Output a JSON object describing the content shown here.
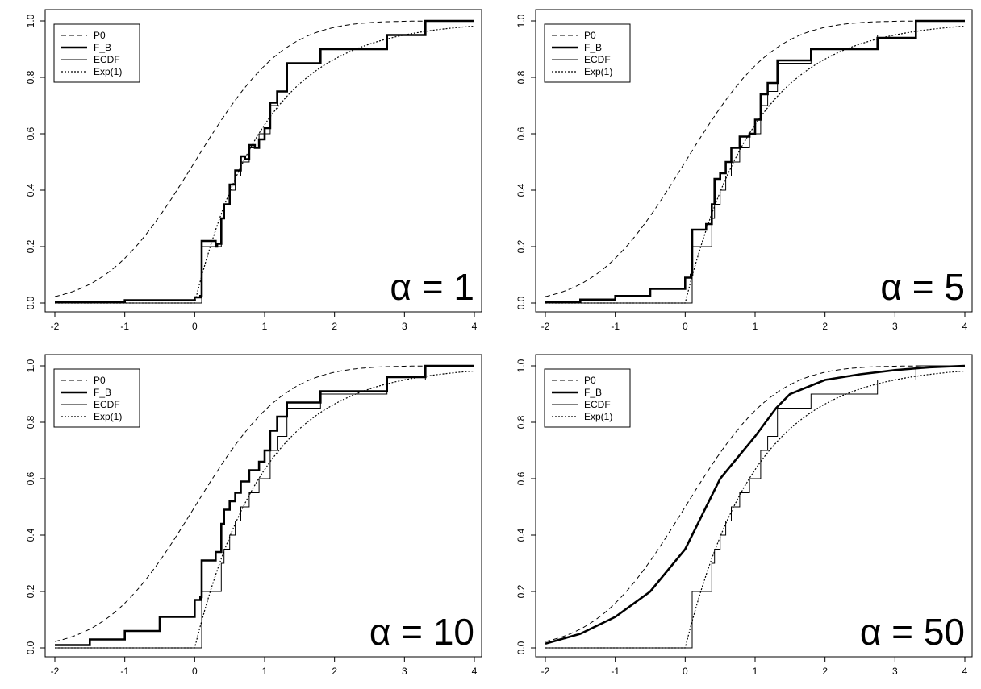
{
  "chart_data": [
    {
      "type": "line",
      "annotation": "α = 1",
      "xlim": [
        -2,
        4
      ],
      "ylim": [
        0,
        1
      ],
      "xticks": [
        "-2",
        "-1",
        "0",
        "1",
        "2",
        "3",
        "4"
      ],
      "yticks": [
        "0.0",
        "0.2",
        "0.4",
        "0.6",
        "0.8",
        "1.0"
      ],
      "legend_position": "top-left",
      "legend": [
        "P0",
        "F_B",
        "ECDF",
        "Exp(1)"
      ],
      "series": [
        {
          "name": "P0",
          "style": "dashed",
          "kind": "normal_cdf",
          "mean": 0,
          "sd": 1
        },
        {
          "name": "F_B",
          "style": "thick",
          "kind": "step",
          "points": [
            [
              -2,
              0.005
            ],
            [
              -1,
              0.01
            ],
            [
              0,
              0.02
            ],
            [
              0.08,
              0.025
            ],
            [
              0.1,
              0.22
            ],
            [
              0.3,
              0.2
            ],
            [
              0.32,
              0.21
            ],
            [
              0.38,
              0.3
            ],
            [
              0.42,
              0.35
            ],
            [
              0.5,
              0.42
            ],
            [
              0.58,
              0.47
            ],
            [
              0.66,
              0.52
            ],
            [
              0.72,
              0.51
            ],
            [
              0.78,
              0.56
            ],
            [
              0.86,
              0.55
            ],
            [
              0.92,
              0.58
            ],
            [
              1.0,
              0.62
            ],
            [
              1.08,
              0.71
            ],
            [
              1.18,
              0.75
            ],
            [
              1.32,
              0.85
            ],
            [
              1.42,
              0.85
            ],
            [
              1.8,
              0.9
            ],
            [
              2.75,
              0.95
            ],
            [
              3.3,
              1.0
            ],
            [
              4,
              1.0
            ]
          ]
        },
        {
          "name": "ECDF",
          "style": "solid",
          "kind": "step",
          "points": [
            [
              -2,
              0.0
            ],
            [
              0.08,
              0.0
            ],
            [
              0.1,
              0.2
            ],
            [
              0.32,
              0.2
            ],
            [
              0.38,
              0.3
            ],
            [
              0.42,
              0.35
            ],
            [
              0.5,
              0.4
            ],
            [
              0.58,
              0.45
            ],
            [
              0.66,
              0.5
            ],
            [
              0.78,
              0.55
            ],
            [
              0.92,
              0.6
            ],
            [
              1.0,
              0.6
            ],
            [
              1.08,
              0.7
            ],
            [
              1.18,
              0.75
            ],
            [
              1.32,
              0.85
            ],
            [
              1.8,
              0.9
            ],
            [
              2.75,
              0.95
            ],
            [
              3.3,
              1.0
            ],
            [
              4,
              1.0
            ]
          ]
        },
        {
          "name": "Exp(1)",
          "style": "dotted",
          "kind": "exp_cdf",
          "rate": 1
        }
      ]
    },
    {
      "type": "line",
      "annotation": "α = 5",
      "xlim": [
        -2,
        4
      ],
      "ylim": [
        0,
        1
      ],
      "xticks": [
        "-2",
        "-1",
        "0",
        "1",
        "2",
        "3",
        "4"
      ],
      "yticks": [
        "0.0",
        "0.2",
        "0.4",
        "0.6",
        "0.8",
        "1.0"
      ],
      "legend_position": "top-left",
      "legend": [
        "P0",
        "F_B",
        "ECDF",
        "Exp(1)"
      ],
      "series": [
        {
          "name": "P0",
          "style": "dashed",
          "kind": "normal_cdf",
          "mean": 0,
          "sd": 1
        },
        {
          "name": "F_B",
          "style": "thick",
          "kind": "step",
          "points": [
            [
              -2,
              0.005
            ],
            [
              -1.5,
              0.012
            ],
            [
              -1,
              0.025
            ],
            [
              -0.5,
              0.05
            ],
            [
              0,
              0.09
            ],
            [
              0.08,
              0.1
            ],
            [
              0.1,
              0.26
            ],
            [
              0.3,
              0.28
            ],
            [
              0.38,
              0.35
            ],
            [
              0.42,
              0.44
            ],
            [
              0.5,
              0.46
            ],
            [
              0.58,
              0.5
            ],
            [
              0.66,
              0.55
            ],
            [
              0.78,
              0.59
            ],
            [
              0.92,
              0.6
            ],
            [
              1.0,
              0.65
            ],
            [
              1.08,
              0.74
            ],
            [
              1.18,
              0.78
            ],
            [
              1.32,
              0.86
            ],
            [
              1.8,
              0.9
            ],
            [
              2.75,
              0.94
            ],
            [
              3.3,
              1.0
            ],
            [
              4,
              1.0
            ]
          ]
        },
        {
          "name": "ECDF",
          "style": "solid",
          "kind": "step",
          "points": [
            [
              -2,
              0.0
            ],
            [
              0.08,
              0.0
            ],
            [
              0.1,
              0.2
            ],
            [
              0.32,
              0.2
            ],
            [
              0.38,
              0.3
            ],
            [
              0.42,
              0.35
            ],
            [
              0.5,
              0.4
            ],
            [
              0.58,
              0.45
            ],
            [
              0.66,
              0.5
            ],
            [
              0.78,
              0.55
            ],
            [
              0.92,
              0.6
            ],
            [
              1.0,
              0.6
            ],
            [
              1.08,
              0.7
            ],
            [
              1.18,
              0.75
            ],
            [
              1.32,
              0.85
            ],
            [
              1.8,
              0.9
            ],
            [
              2.75,
              0.95
            ],
            [
              3.3,
              1.0
            ],
            [
              4,
              1.0
            ]
          ]
        },
        {
          "name": "Exp(1)",
          "style": "dotted",
          "kind": "exp_cdf",
          "rate": 1
        }
      ]
    },
    {
      "type": "line",
      "annotation": "α = 10",
      "xlim": [
        -2,
        4
      ],
      "ylim": [
        0,
        1
      ],
      "xticks": [
        "-2",
        "-1",
        "0",
        "1",
        "2",
        "3",
        "4"
      ],
      "yticks": [
        "0.0",
        "0.2",
        "0.4",
        "0.6",
        "0.8",
        "1.0"
      ],
      "legend_position": "top-left",
      "legend": [
        "P0",
        "F_B",
        "ECDF",
        "Exp(1)"
      ],
      "series": [
        {
          "name": "P0",
          "style": "dashed",
          "kind": "normal_cdf",
          "mean": 0,
          "sd": 1
        },
        {
          "name": "F_B",
          "style": "thick",
          "kind": "step",
          "points": [
            [
              -2,
              0.01
            ],
            [
              -1.5,
              0.03
            ],
            [
              -1,
              0.06
            ],
            [
              -0.5,
              0.11
            ],
            [
              0,
              0.17
            ],
            [
              0.08,
              0.18
            ],
            [
              0.1,
              0.31
            ],
            [
              0.3,
              0.34
            ],
            [
              0.38,
              0.44
            ],
            [
              0.42,
              0.49
            ],
            [
              0.5,
              0.52
            ],
            [
              0.58,
              0.55
            ],
            [
              0.66,
              0.59
            ],
            [
              0.78,
              0.63
            ],
            [
              0.92,
              0.66
            ],
            [
              1.0,
              0.7
            ],
            [
              1.08,
              0.77
            ],
            [
              1.18,
              0.82
            ],
            [
              1.32,
              0.87
            ],
            [
              1.8,
              0.91
            ],
            [
              2.75,
              0.96
            ],
            [
              3.3,
              1.0
            ],
            [
              4,
              1.0
            ]
          ]
        },
        {
          "name": "ECDF",
          "style": "solid",
          "kind": "step",
          "points": [
            [
              -2,
              0.0
            ],
            [
              0.08,
              0.0
            ],
            [
              0.1,
              0.2
            ],
            [
              0.32,
              0.2
            ],
            [
              0.38,
              0.3
            ],
            [
              0.42,
              0.35
            ],
            [
              0.5,
              0.4
            ],
            [
              0.58,
              0.45
            ],
            [
              0.66,
              0.5
            ],
            [
              0.78,
              0.55
            ],
            [
              0.92,
              0.6
            ],
            [
              1.0,
              0.6
            ],
            [
              1.08,
              0.7
            ],
            [
              1.18,
              0.75
            ],
            [
              1.32,
              0.85
            ],
            [
              1.8,
              0.9
            ],
            [
              2.75,
              0.95
            ],
            [
              3.3,
              1.0
            ],
            [
              4,
              1.0
            ]
          ]
        },
        {
          "name": "Exp(1)",
          "style": "dotted",
          "kind": "exp_cdf",
          "rate": 1
        }
      ]
    },
    {
      "type": "line",
      "annotation": "α = 50",
      "xlim": [
        -2,
        4
      ],
      "ylim": [
        0,
        1
      ],
      "xticks": [
        "-2",
        "-1",
        "0",
        "1",
        "2",
        "3",
        "4"
      ],
      "yticks": [
        "0.0",
        "0.2",
        "0.4",
        "0.6",
        "0.8",
        "1.0"
      ],
      "legend_position": "top-left",
      "legend": [
        "P0",
        "F_B",
        "ECDF",
        "Exp(1)"
      ],
      "series": [
        {
          "name": "P0",
          "style": "dashed",
          "kind": "normal_cdf",
          "mean": 0,
          "sd": 1
        },
        {
          "name": "F_B",
          "style": "thick",
          "kind": "smooth",
          "points": [
            [
              -2,
              0.015
            ],
            [
              -1.5,
              0.05
            ],
            [
              -1,
              0.11
            ],
            [
              -0.5,
              0.2
            ],
            [
              0,
              0.35
            ],
            [
              0.1,
              0.4
            ],
            [
              0.3,
              0.5
            ],
            [
              0.5,
              0.6
            ],
            [
              0.7,
              0.66
            ],
            [
              1.0,
              0.75
            ],
            [
              1.3,
              0.85
            ],
            [
              1.5,
              0.9
            ],
            [
              2,
              0.95
            ],
            [
              2.5,
              0.97
            ],
            [
              3,
              0.985
            ],
            [
              3.5,
              0.995
            ],
            [
              4,
              1.0
            ]
          ]
        },
        {
          "name": "ECDF",
          "style": "solid",
          "kind": "step",
          "points": [
            [
              -2,
              0.0
            ],
            [
              0.08,
              0.0
            ],
            [
              0.1,
              0.2
            ],
            [
              0.32,
              0.2
            ],
            [
              0.38,
              0.3
            ],
            [
              0.42,
              0.35
            ],
            [
              0.5,
              0.4
            ],
            [
              0.58,
              0.45
            ],
            [
              0.66,
              0.5
            ],
            [
              0.78,
              0.55
            ],
            [
              0.92,
              0.6
            ],
            [
              1.0,
              0.6
            ],
            [
              1.08,
              0.7
            ],
            [
              1.18,
              0.75
            ],
            [
              1.32,
              0.85
            ],
            [
              1.8,
              0.9
            ],
            [
              2.75,
              0.95
            ],
            [
              3.3,
              1.0
            ],
            [
              4,
              1.0
            ]
          ]
        },
        {
          "name": "Exp(1)",
          "style": "dotted",
          "kind": "exp_cdf",
          "rate": 1
        }
      ]
    }
  ]
}
